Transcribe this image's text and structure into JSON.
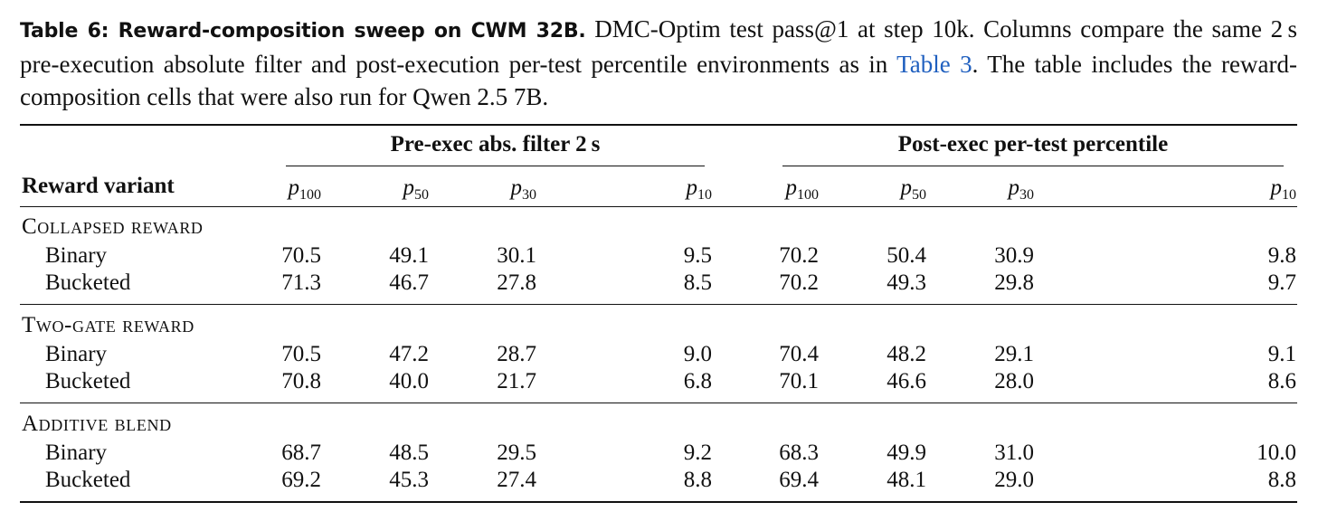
{
  "caption": {
    "label": "Table 6: Reward-composition sweep on CWM 32B.",
    "text_before_link": " DMC-Optim test pass@1 at step 10k. Columns compare the same 2 s pre-execution absolute filter and post-execution per-test percentile environments as in ",
    "link_text": "Table 3",
    "text_after_link": ". The table includes the reward-composition cells that were also run for Qwen 2.5 7B."
  },
  "table": {
    "row_header": "Reward variant",
    "groups": [
      {
        "label": "Pre-exec abs. filter 2 s"
      },
      {
        "label": "Post-exec per-test percentile"
      }
    ],
    "column_symbols": [
      {
        "sym": "p",
        "sub": "100"
      },
      {
        "sym": "p",
        "sub": "50"
      },
      {
        "sym": "p",
        "sub": "30"
      },
      {
        "sym": "p",
        "sub": "10"
      },
      {
        "sym": "p",
        "sub": "100"
      },
      {
        "sym": "p",
        "sub": "50"
      },
      {
        "sym": "p",
        "sub": "30"
      },
      {
        "sym": "p",
        "sub": "10"
      }
    ],
    "sections": [
      {
        "title": "Collapsed reward",
        "rows": [
          {
            "label": "Binary",
            "values": [
              "70.5",
              "49.1",
              "30.1",
              "9.5",
              "70.2",
              "50.4",
              "30.9",
              "9.8"
            ]
          },
          {
            "label": "Bucketed",
            "values": [
              "71.3",
              "46.7",
              "27.8",
              "8.5",
              "70.2",
              "49.3",
              "29.8",
              "9.7"
            ]
          }
        ]
      },
      {
        "title": "Two-gate reward",
        "rows": [
          {
            "label": "Binary",
            "values": [
              "70.5",
              "47.2",
              "28.7",
              "9.0",
              "70.4",
              "48.2",
              "29.1",
              "9.1"
            ]
          },
          {
            "label": "Bucketed",
            "values": [
              "70.8",
              "40.0",
              "21.7",
              "6.8",
              "70.1",
              "46.6",
              "28.0",
              "8.6"
            ]
          }
        ]
      },
      {
        "title": "Additive blend",
        "rows": [
          {
            "label": "Binary",
            "values": [
              "68.7",
              "48.5",
              "29.5",
              "9.2",
              "68.3",
              "49.9",
              "31.0",
              "10.0"
            ]
          },
          {
            "label": "Bucketed",
            "values": [
              "69.2",
              "45.3",
              "27.4",
              "8.8",
              "69.4",
              "48.1",
              "29.0",
              "8.8"
            ]
          }
        ]
      }
    ]
  }
}
